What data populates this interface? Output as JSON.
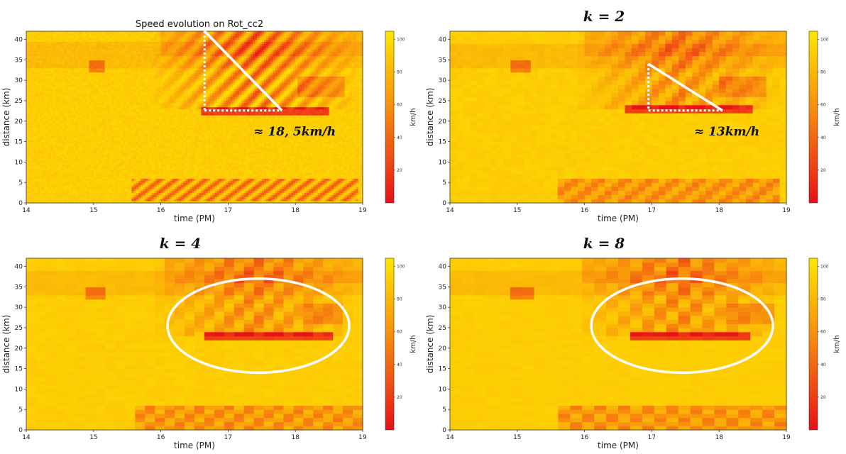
{
  "colors": {
    "low": "#e8101a",
    "mid": "#f7820e",
    "high": "#ffe600"
  },
  "chart_data": [
    {
      "type": "heatmap",
      "title": "Speed evolution on Rot_cc2",
      "xlabel": "time (PM)",
      "ylabel": "distance (km)",
      "xlim": [
        14,
        19
      ],
      "ylim": [
        0,
        42
      ],
      "xticks": [
        "14",
        "15",
        "16",
        "17",
        "18",
        "19"
      ],
      "yticks": [
        "0",
        "5",
        "10",
        "15",
        "20",
        "25",
        "30",
        "35",
        "40"
      ],
      "colorbar": {
        "label": "km/h",
        "ticks": [
          "20",
          "40",
          "60",
          "80",
          "100"
        ],
        "range": [
          0,
          105
        ]
      },
      "resolution": "fine",
      "annotation": {
        "text": "≈ 18, 5km/h",
        "shape": "triangle",
        "from": [
          16.65,
          42
        ],
        "to": [
          17.8,
          22.6
        ]
      }
    },
    {
      "type": "heatmap",
      "title": "k = 2",
      "xlabel": "time (PM)",
      "ylabel": "distance (km)",
      "xlim": [
        14,
        19
      ],
      "ylim": [
        0,
        42
      ],
      "xticks": [
        "14",
        "15",
        "16",
        "17",
        "18",
        "19"
      ],
      "yticks": [
        "0",
        "5",
        "10",
        "15",
        "20",
        "25",
        "30",
        "35",
        "40"
      ],
      "colorbar": {
        "label": "km/h",
        "ticks": [
          "20",
          "40",
          "60",
          "80",
          "100"
        ],
        "range": [
          0,
          105
        ]
      },
      "resolution": "k2",
      "annotation": {
        "text": "≈ 13km/h",
        "shape": "triangle",
        "from": [
          16.95,
          34
        ],
        "to": [
          18.05,
          22.6
        ]
      }
    },
    {
      "type": "heatmap",
      "title": "k = 4",
      "xlabel": "time (PM)",
      "ylabel": "distance (km)",
      "xlim": [
        14,
        19
      ],
      "ylim": [
        0,
        42
      ],
      "xticks": [
        "14",
        "15",
        "16",
        "17",
        "18",
        "19"
      ],
      "yticks": [
        "0",
        "5",
        "10",
        "15",
        "20",
        "25",
        "30",
        "35",
        "40"
      ],
      "colorbar": {
        "label": "km/h",
        "ticks": [
          "20",
          "40",
          "60",
          "80",
          "100"
        ],
        "range": [
          0,
          105
        ]
      },
      "resolution": "k4",
      "annotation": {
        "shape": "ellipse",
        "center": [
          17.45,
          25.5
        ],
        "radii": [
          1.35,
          11.5
        ]
      }
    },
    {
      "type": "heatmap",
      "title": "k = 8",
      "xlabel": "time (PM)",
      "ylabel": "distance (km)",
      "xlim": [
        14,
        19
      ],
      "ylim": [
        0,
        42
      ],
      "xticks": [
        "14",
        "15",
        "16",
        "17",
        "18",
        "19"
      ],
      "yticks": [
        "0",
        "5",
        "10",
        "15",
        "20",
        "25",
        "30",
        "35",
        "40"
      ],
      "colorbar": {
        "label": "km/h",
        "ticks": [
          "20",
          "40",
          "60",
          "80",
          "100"
        ],
        "range": [
          0,
          105
        ]
      },
      "resolution": "k8",
      "annotation": {
        "shape": "ellipse",
        "center": [
          17.45,
          25.5
        ],
        "radii": [
          1.35,
          11.5
        ]
      }
    }
  ]
}
